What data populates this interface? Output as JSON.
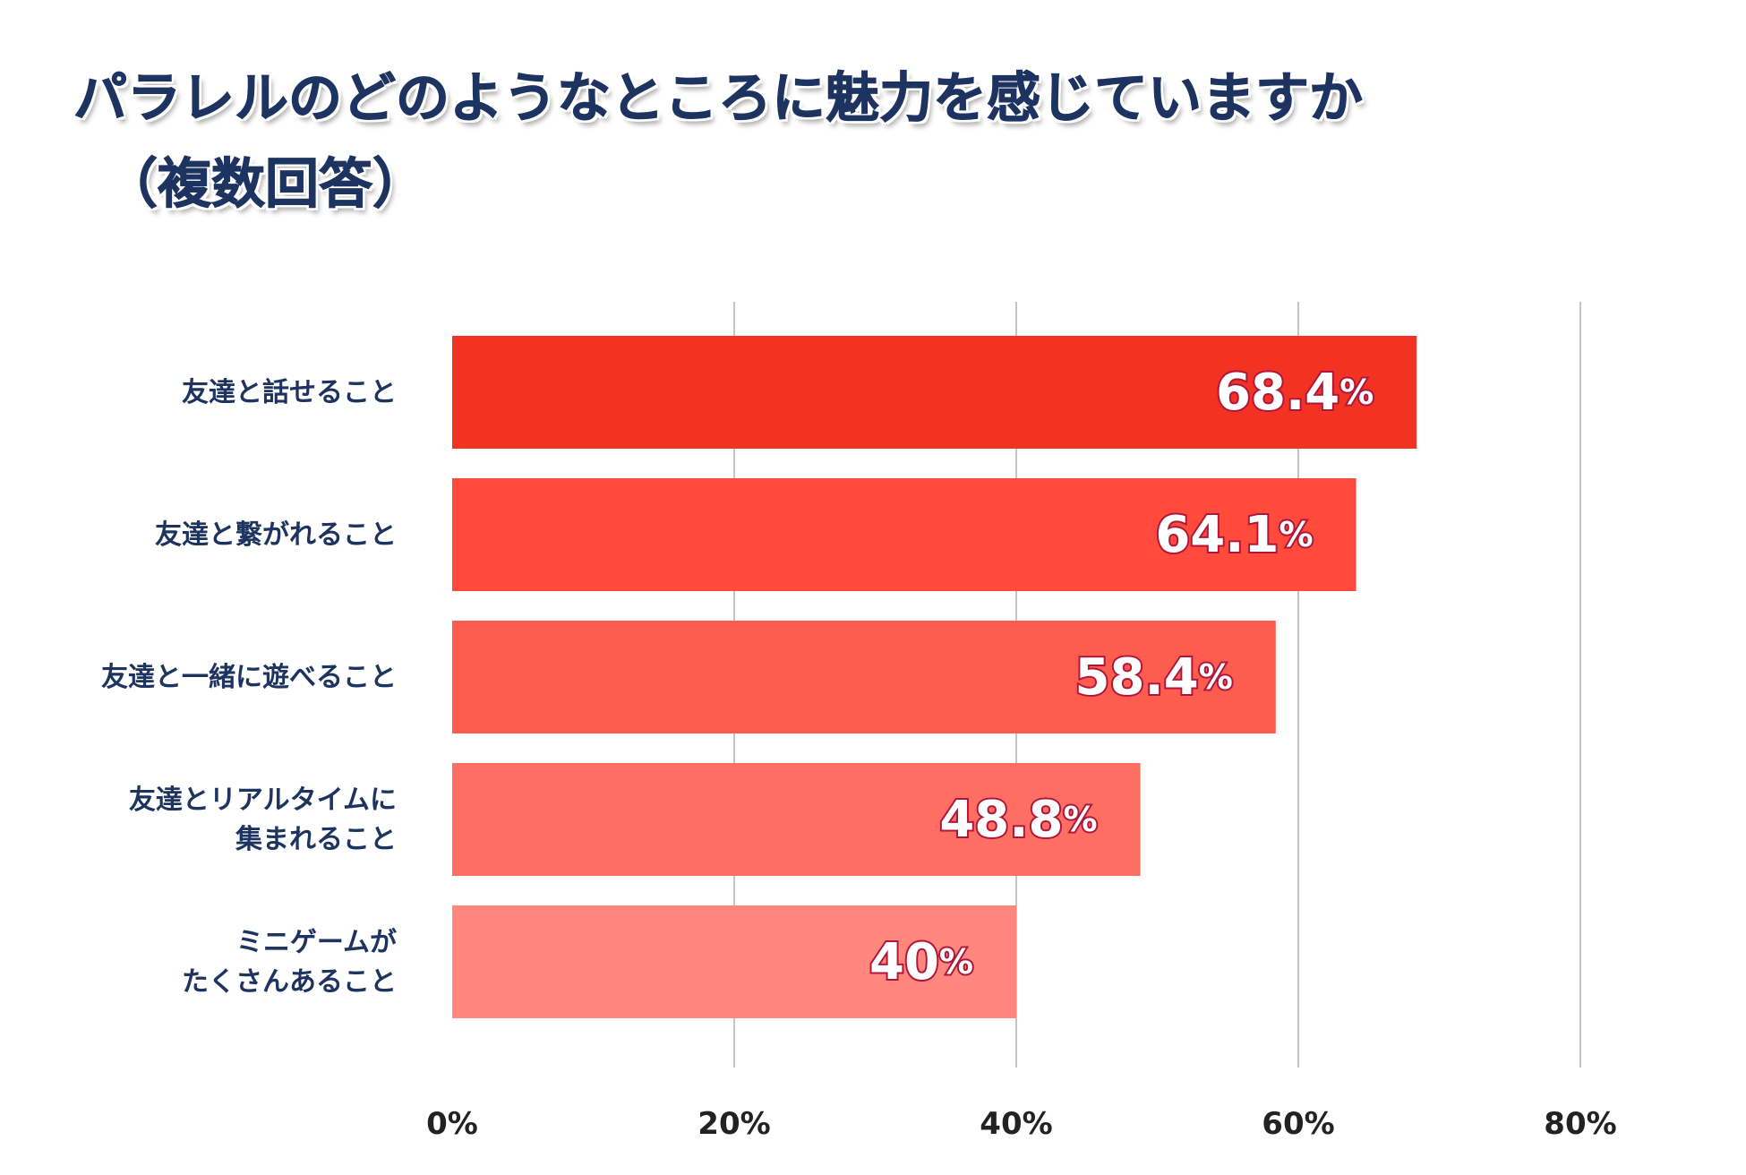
{
  "title": {
    "line1": "パラレルのどのようなところに魅力を感じていますか",
    "line2": "（複数回答）"
  },
  "chart_data": {
    "type": "bar",
    "orientation": "horizontal",
    "categories": [
      [
        "友達と話せること"
      ],
      [
        "友達と繋がれること"
      ],
      [
        "友達と一緒に遊べること"
      ],
      [
        "友達とリアルタイムに",
        "集まれること"
      ],
      [
        "ミニゲームが",
        "たくさんあること"
      ]
    ],
    "values": [
      68.4,
      64.1,
      58.4,
      48.8,
      40
    ],
    "value_labels": [
      "68.4",
      "64.1",
      "58.4",
      "48.8",
      "40"
    ],
    "value_unit": "%",
    "bar_colors": [
      "#f23222",
      "#ff4a3c",
      "#ff5c50",
      "#ff6e63",
      "#ff877d"
    ],
    "xlim": [
      0,
      80
    ],
    "xticks": [
      0,
      20,
      40,
      60,
      80
    ],
    "xtick_labels": [
      "0%",
      "20%",
      "40%",
      "60%",
      "80%"
    ],
    "grid": true,
    "xlabel": "",
    "ylabel": ""
  }
}
